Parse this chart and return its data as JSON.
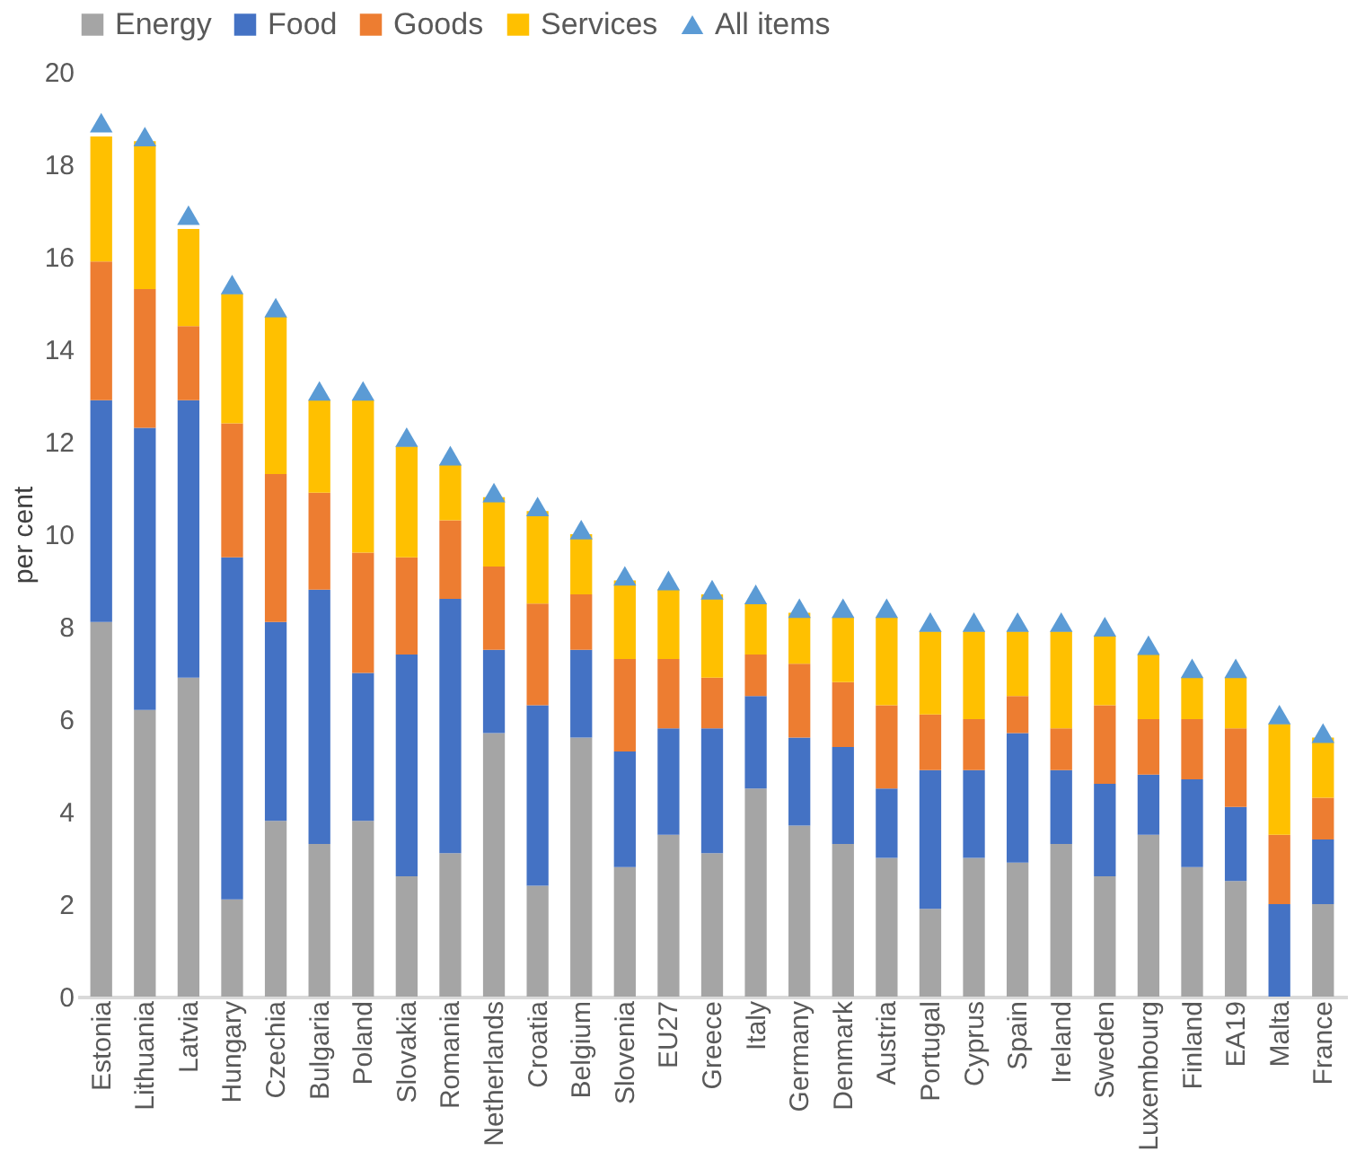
{
  "chart_data": {
    "type": "bar",
    "stacked": true,
    "ylabel": "per cent",
    "ylim": [
      0,
      20
    ],
    "yticks": [
      0,
      2,
      4,
      6,
      8,
      10,
      12,
      14,
      16,
      18,
      20
    ],
    "grid": false,
    "legend": "top",
    "categories": [
      "Estonia",
      "Lithuania",
      "Latvia",
      "Hungary",
      "Czechia",
      "Bulgaria",
      "Poland",
      "Slovakia",
      "Romania",
      "Netherlands",
      "Croatia",
      "Belgium",
      "Slovenia",
      "EU27",
      "Greece",
      "Italy",
      "Germany",
      "Denmark",
      "Austria",
      "Portugal",
      "Cyprus",
      "Spain",
      "Ireland",
      "Sweden",
      "Luxembourg",
      "Finland",
      "EA19",
      "Malta",
      "France"
    ],
    "series": [
      {
        "name": "Energy",
        "color": "#a5a5a5",
        "values": [
          8.1,
          6.2,
          6.9,
          2.1,
          3.8,
          3.3,
          3.8,
          2.6,
          3.1,
          5.7,
          2.4,
          5.6,
          2.8,
          3.5,
          3.1,
          4.5,
          3.7,
          3.3,
          3.0,
          1.9,
          3.0,
          2.9,
          3.3,
          2.6,
          3.5,
          2.8,
          2.5,
          0,
          2.0
        ]
      },
      {
        "name": "Food",
        "color": "#4472c4",
        "values": [
          4.8,
          6.1,
          6.0,
          7.4,
          4.3,
          5.5,
          3.2,
          4.8,
          5.5,
          1.8,
          3.9,
          1.9,
          2.5,
          2.3,
          2.7,
          2.0,
          1.9,
          2.1,
          1.5,
          3.0,
          1.9,
          2.8,
          1.6,
          2.0,
          1.3,
          1.9,
          1.6,
          2.0,
          1.4
        ]
      },
      {
        "name": "Goods",
        "color": "#ed7d31",
        "values": [
          3.0,
          3.0,
          1.6,
          2.9,
          3.2,
          2.1,
          2.6,
          2.1,
          1.7,
          1.8,
          2.2,
          1.2,
          2.0,
          1.5,
          1.1,
          0.9,
          1.6,
          1.4,
          1.8,
          1.2,
          1.1,
          0.8,
          0.9,
          1.7,
          1.2,
          1.3,
          1.7,
          1.5,
          0.9
        ]
      },
      {
        "name": "Services",
        "color": "#ffc000",
        "values": [
          2.7,
          3.2,
          2.1,
          2.8,
          3.4,
          2.0,
          3.3,
          2.4,
          1.2,
          1.5,
          2.0,
          1.3,
          1.7,
          1.5,
          1.8,
          1.1,
          1.1,
          1.4,
          1.9,
          1.8,
          1.9,
          1.4,
          2.1,
          1.5,
          1.4,
          0.9,
          1.1,
          2.4,
          1.3
        ]
      },
      {
        "name": "All items",
        "type": "scatter",
        "marker": "triangle",
        "color": "#5b9bd5",
        "values": [
          18.9,
          18.6,
          16.9,
          15.4,
          14.9,
          13.1,
          13.1,
          12.1,
          11.7,
          10.9,
          10.6,
          10.1,
          9.1,
          9.0,
          8.8,
          8.7,
          8.4,
          8.4,
          8.4,
          8.1,
          8.1,
          8.1,
          8.1,
          8.0,
          7.6,
          7.1,
          7.1,
          6.1,
          5.7
        ]
      }
    ]
  }
}
